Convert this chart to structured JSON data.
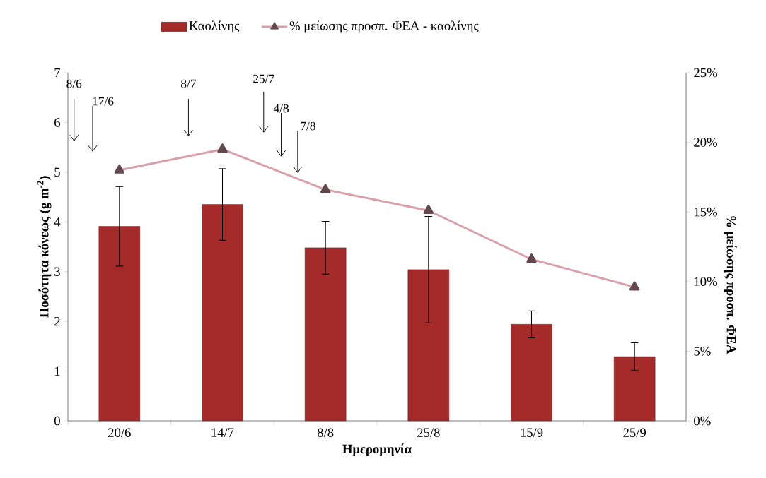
{
  "chart_data": {
    "type": "bar",
    "xlabel": "Ημερομηνία",
    "ylabel": "Ποσότητα κόνεως (g m$^{-2}$)",
    "y2label": "% μείωσης προσπ. ΦΕΑ",
    "categories": [
      "20/6",
      "14/7",
      "8/8",
      "25/8",
      "15/9",
      "25/9"
    ],
    "series": [
      {
        "name": "Καολίνης",
        "color": "#a52a2a",
        "values": [
          3.91,
          4.35,
          3.48,
          3.04,
          1.94,
          1.29
        ],
        "errors": [
          0.8,
          0.72,
          0.53,
          1.07,
          0.27,
          0.28
        ]
      },
      {
        "name": "% μείωσης προσπ. ΦΕΑ - καολίνης",
        "type": "line",
        "axis": "y2",
        "color": "#d9a0aa",
        "values": [
          18.0,
          19.5,
          16.6,
          15.1,
          11.6,
          9.6
        ]
      }
    ],
    "ylim": [
      0,
      7
    ],
    "yticks": [
      0,
      1,
      2,
      3,
      4,
      5,
      6,
      7
    ],
    "y2lim": [
      0,
      25
    ],
    "y2ticks": [
      {
        "value": 0,
        "label": "0%"
      },
      {
        "value": 5,
        "label": "5%"
      },
      {
        "value": 10,
        "label": "10%"
      },
      {
        "value": 15,
        "label": "15%"
      },
      {
        "value": 20,
        "label": "20%"
      },
      {
        "value": 25,
        "label": "25%"
      }
    ],
    "annotations": [
      "8/6",
      "17/6",
      "8/7",
      "25/7",
      "4/8",
      "7/8"
    ],
    "legend": "top",
    "marker": "triangle",
    "grid": false
  }
}
